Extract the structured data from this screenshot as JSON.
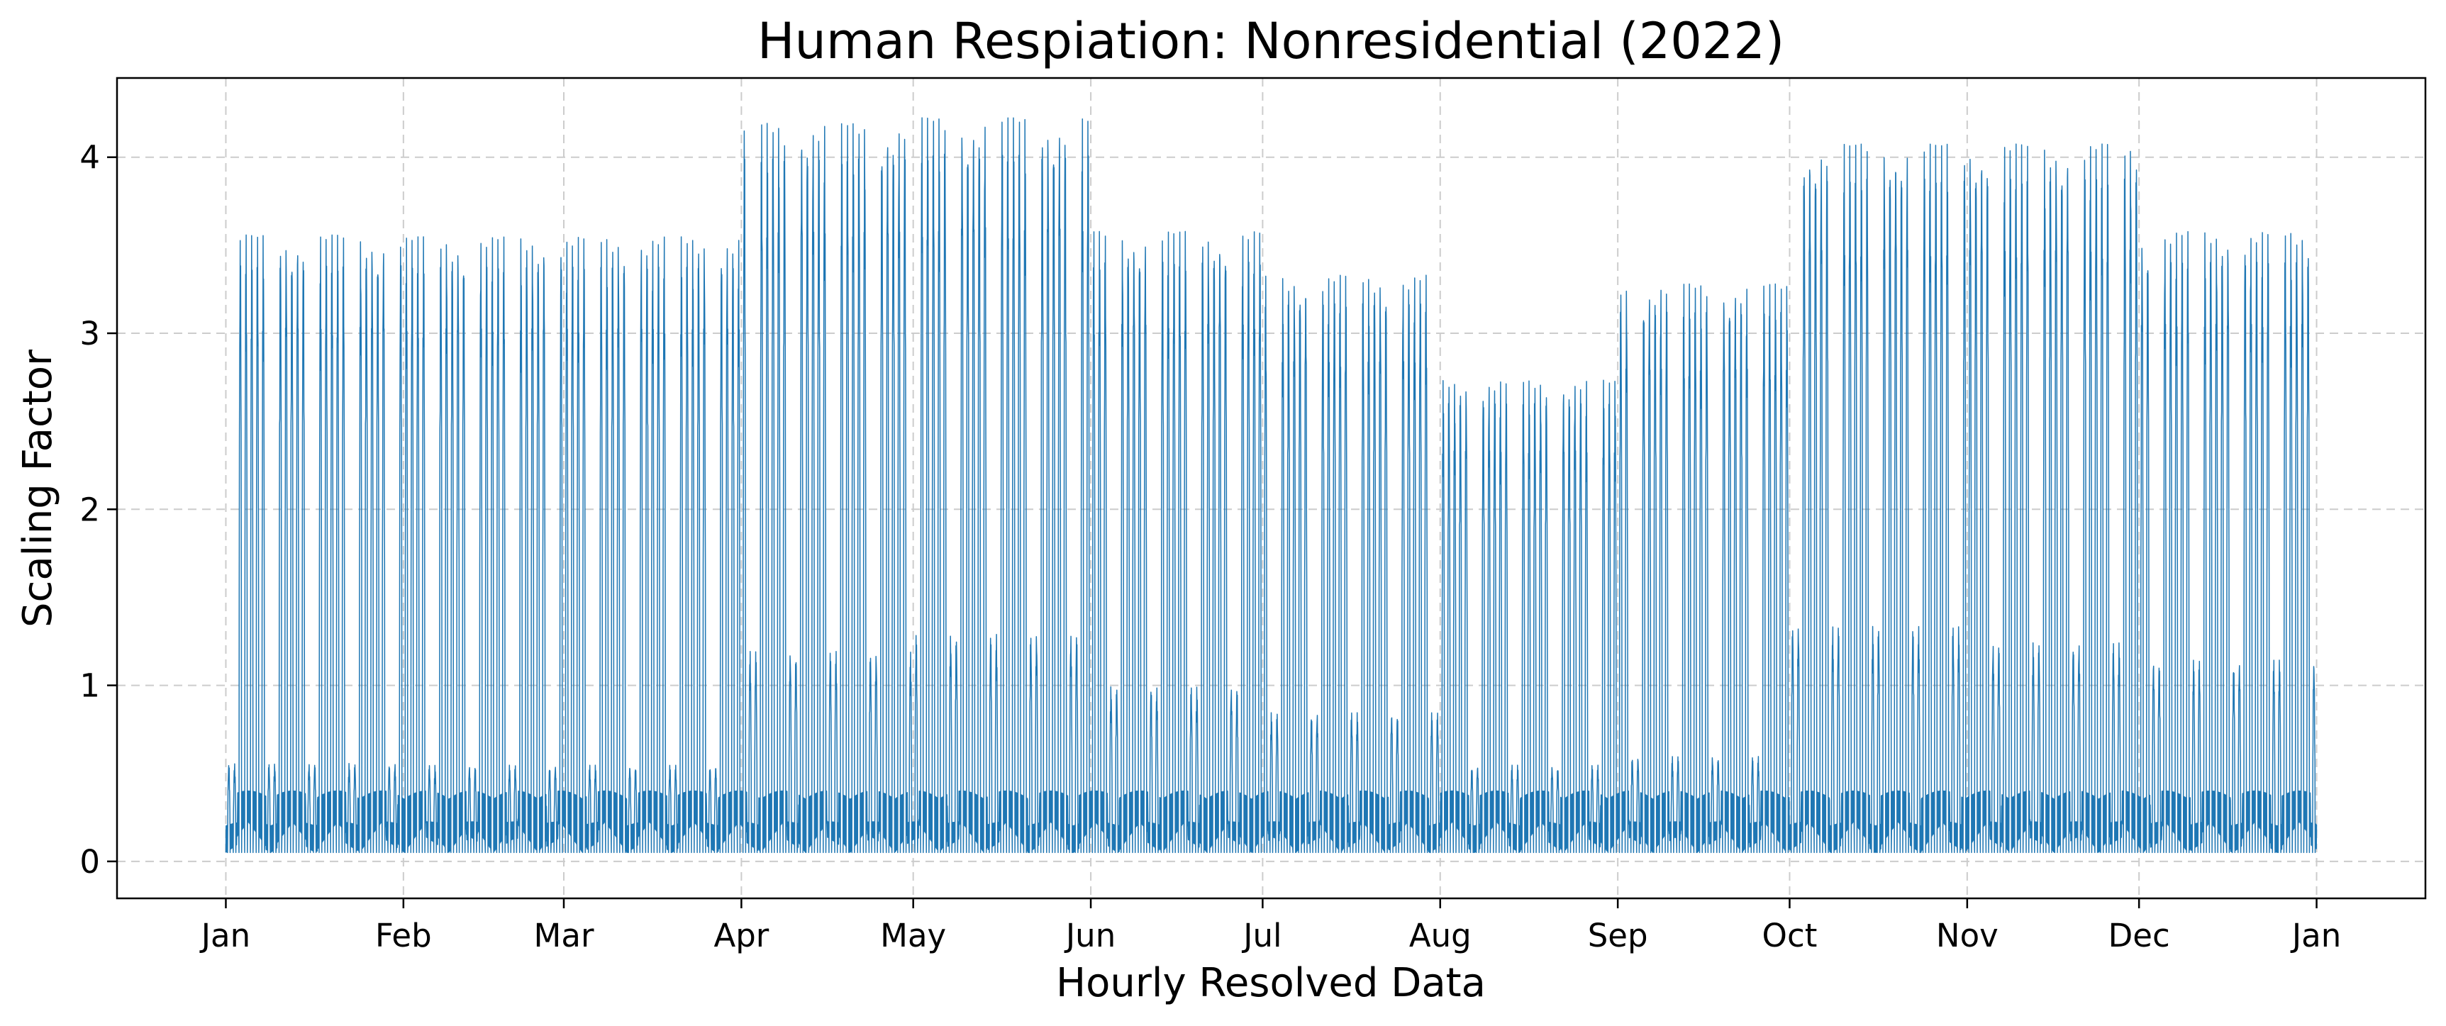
{
  "chart_data": {
    "type": "line",
    "title": "Human Respiation: Nonresidential (2022)",
    "xlabel": "Hourly Resolved Data",
    "ylabel": "Scaling Factor",
    "x_range": [
      "2022-01-01",
      "2023-01-01"
    ],
    "x_axis_padding_days": 19,
    "ylim": [
      -0.21,
      4.45
    ],
    "xticks": [
      {
        "date": "2022-01-01",
        "label": "Jan"
      },
      {
        "date": "2022-02-01",
        "label": "Feb"
      },
      {
        "date": "2022-03-01",
        "label": "Mar"
      },
      {
        "date": "2022-04-01",
        "label": "Apr"
      },
      {
        "date": "2022-05-01",
        "label": "May"
      },
      {
        "date": "2022-06-01",
        "label": "Jun"
      },
      {
        "date": "2022-07-01",
        "label": "Jul"
      },
      {
        "date": "2022-08-01",
        "label": "Aug"
      },
      {
        "date": "2022-09-01",
        "label": "Sep"
      },
      {
        "date": "2022-10-01",
        "label": "Oct"
      },
      {
        "date": "2022-11-01",
        "label": "Nov"
      },
      {
        "date": "2022-12-01",
        "label": "Dec"
      },
      {
        "date": "2023-01-01",
        "label": "Jan"
      }
    ],
    "yticks": [
      0,
      1,
      2,
      3,
      4
    ],
    "grid": true,
    "series": [
      {
        "color": "#1f77b4",
        "resolution": "hourly",
        "night_baseline": 0.05,
        "weekday_peak_by_month": {
          "Jan": 3.58,
          "Feb": 3.57,
          "Mar": 3.57,
          "Apr": 4.22,
          "May": 4.25,
          "Jun": 3.6,
          "Jul": 3.35,
          "Aug": 2.75,
          "Sep": 3.3,
          "Oct": 4.1,
          "Nov": 4.1,
          "Dec": 3.6
        },
        "weekend_peak_by_month": {
          "Jan": 0.56,
          "Feb": 0.55,
          "Mar": 0.55,
          "Apr": 1.2,
          "May": 1.3,
          "Jun": 1.0,
          "Jul": 0.85,
          "Aug": 0.55,
          "Sep": 0.6,
          "Oct": 1.35,
          "Nov": 1.25,
          "Dec": 1.15
        }
      }
    ]
  }
}
